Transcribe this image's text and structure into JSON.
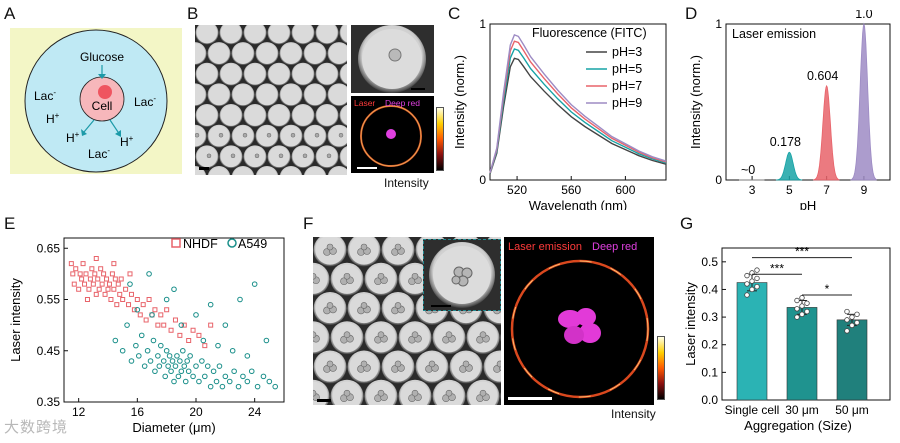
{
  "panel_labels": {
    "a": "A",
    "b": "B",
    "c": "C",
    "d": "D",
    "e": "E",
    "f": "F",
    "g": "G"
  },
  "panelA": {
    "glucose": "Glucose",
    "cell": "Cell",
    "lac": "Lac",
    "minus": "-",
    "hplus": "H",
    "plus": "+",
    "colors": {
      "bg": "#f3f6c6",
      "drop": "#bfe9f4",
      "cell": "#f7b7bb",
      "nucleus": "#ef5560",
      "arrow": "#1c9aa8"
    }
  },
  "panelB": {
    "laser": "Laser",
    "deep_red": "Deep red",
    "intensity": "Intensity"
  },
  "panelF": {
    "laser": "Laser emission",
    "deep_red": "Deep red",
    "intensity": "Intensity"
  },
  "chart_data": [
    {
      "id": "C",
      "type": "line",
      "legend_title": "Fluorescence (FITC)",
      "xlabel": "Wavelength (nm)",
      "ylabel": "Intensity (norm.)",
      "xlim": [
        500,
        630
      ],
      "ylim": [
        0,
        1
      ],
      "xticks": [
        520,
        560,
        600
      ],
      "yticks": [
        0,
        1
      ],
      "series": [
        {
          "name": "pH=3",
          "color": "#444444",
          "peak": 0.78
        },
        {
          "name": "pH=5",
          "color": "#17a3a6",
          "peak": 0.84
        },
        {
          "name": "pH=7",
          "color": "#e8636a",
          "peak": 0.89
        },
        {
          "name": "pH=9",
          "color": "#9d8bc4",
          "peak": 0.93
        }
      ],
      "shape": {
        "x": [
          500,
          505,
          510,
          515,
          518,
          521,
          525,
          530,
          540,
          550,
          560,
          570,
          580,
          590,
          600,
          610,
          620,
          630
        ],
        "y": [
          0.05,
          0.22,
          0.6,
          0.93,
          1.0,
          0.99,
          0.93,
          0.85,
          0.73,
          0.62,
          0.52,
          0.44,
          0.37,
          0.3,
          0.25,
          0.2,
          0.16,
          0.13
        ]
      }
    },
    {
      "id": "D",
      "type": "area",
      "legend_title": "Laser emission",
      "xlabel": "pH",
      "ylabel": "Intensity (norm.)",
      "xlim": [
        1.6,
        10.4
      ],
      "ylim": [
        0,
        1
      ],
      "xticks": [
        3,
        5,
        7,
        9
      ],
      "yticks": [
        0,
        1
      ],
      "series": [
        {
          "name": "pH=3",
          "x": 3,
          "value": 0,
          "label": "~0",
          "color": "#9a9a9a"
        },
        {
          "name": "pH=5",
          "x": 5,
          "value": 0.178,
          "label": "0.178",
          "color": "#17a3a6"
        },
        {
          "name": "pH=7",
          "x": 7,
          "value": 0.604,
          "label": "0.604",
          "color": "#e8636a"
        },
        {
          "name": "pH=9",
          "x": 9,
          "value": 1.0,
          "label": "1.0",
          "color": "#9d8bc4"
        }
      ]
    },
    {
      "id": "E",
      "type": "scatter",
      "xlabel": "Diameter (μm)",
      "ylabel": "Laser intensity",
      "xlim": [
        11,
        26
      ],
      "ylim": [
        0.35,
        0.67
      ],
      "xticks": [
        12,
        16,
        20,
        24
      ],
      "yticks": [
        0.35,
        0.45,
        0.55,
        0.65
      ],
      "series": [
        {
          "name": "NHDF",
          "marker": "square",
          "color": "#e8636a",
          "points": [
            [
              11.5,
              0.62
            ],
            [
              11.6,
              0.6
            ],
            [
              11.7,
              0.58
            ],
            [
              11.8,
              0.61
            ],
            [
              12.0,
              0.57
            ],
            [
              12.1,
              0.6
            ],
            [
              12.2,
              0.59
            ],
            [
              12.3,
              0.62
            ],
            [
              12.4,
              0.58
            ],
            [
              12.5,
              0.6
            ],
            [
              12.6,
              0.55
            ],
            [
              12.7,
              0.57
            ],
            [
              12.8,
              0.59
            ],
            [
              12.9,
              0.61
            ],
            [
              13.0,
              0.58
            ],
            [
              13.1,
              0.6
            ],
            [
              13.2,
              0.56
            ],
            [
              13.3,
              0.59
            ],
            [
              13.4,
              0.57
            ],
            [
              13.5,
              0.61
            ],
            [
              13.6,
              0.58
            ],
            [
              13.7,
              0.6
            ],
            [
              13.8,
              0.56
            ],
            [
              13.9,
              0.59
            ],
            [
              14.0,
              0.57
            ],
            [
              14.1,
              0.58
            ],
            [
              14.2,
              0.55
            ],
            [
              14.3,
              0.6
            ],
            [
              14.4,
              0.57
            ],
            [
              14.5,
              0.59
            ],
            [
              14.6,
              0.54
            ],
            [
              14.7,
              0.58
            ],
            [
              14.8,
              0.56
            ],
            [
              14.9,
              0.59
            ],
            [
              15.0,
              0.55
            ],
            [
              15.2,
              0.57
            ],
            [
              15.4,
              0.54
            ],
            [
              15.6,
              0.56
            ],
            [
              15.8,
              0.53
            ],
            [
              16.0,
              0.55
            ],
            [
              16.2,
              0.52
            ],
            [
              16.4,
              0.54
            ],
            [
              16.6,
              0.51
            ],
            [
              16.8,
              0.55
            ],
            [
              17.0,
              0.52
            ],
            [
              17.2,
              0.53
            ],
            [
              17.4,
              0.5
            ],
            [
              17.6,
              0.52
            ],
            [
              17.8,
              0.5
            ],
            [
              18.0,
              0.53
            ],
            [
              18.3,
              0.49
            ],
            [
              18.6,
              0.51
            ],
            [
              18.9,
              0.48
            ],
            [
              19.2,
              0.5
            ],
            [
              19.5,
              0.47
            ],
            [
              19.8,
              0.49
            ],
            [
              20.2,
              0.48
            ],
            [
              20.6,
              0.46
            ],
            [
              21.0,
              0.5
            ],
            [
              13.2,
              0.63
            ],
            [
              14.4,
              0.62
            ],
            [
              15.5,
              0.6
            ]
          ]
        },
        {
          "name": "A549",
          "marker": "circle",
          "color": "#1a8f8a",
          "points": [
            [
              14.5,
              0.47
            ],
            [
              15.0,
              0.45
            ],
            [
              15.3,
              0.5
            ],
            [
              15.6,
              0.43
            ],
            [
              15.9,
              0.46
            ],
            [
              16.1,
              0.44
            ],
            [
              16.3,
              0.48
            ],
            [
              16.5,
              0.42
            ],
            [
              16.7,
              0.45
            ],
            [
              16.9,
              0.43
            ],
            [
              17.1,
              0.47
            ],
            [
              17.2,
              0.41
            ],
            [
              17.4,
              0.44
            ],
            [
              17.5,
              0.42
            ],
            [
              17.6,
              0.46
            ],
            [
              17.8,
              0.43
            ],
            [
              17.9,
              0.4
            ],
            [
              18.0,
              0.45
            ],
            [
              18.1,
              0.42
            ],
            [
              18.2,
              0.44
            ],
            [
              18.3,
              0.41
            ],
            [
              18.4,
              0.43
            ],
            [
              18.5,
              0.39
            ],
            [
              18.6,
              0.42
            ],
            [
              18.7,
              0.44
            ],
            [
              18.8,
              0.4
            ],
            [
              18.9,
              0.43
            ],
            [
              19.0,
              0.41
            ],
            [
              19.1,
              0.45
            ],
            [
              19.2,
              0.42
            ],
            [
              19.3,
              0.39
            ],
            [
              19.4,
              0.43
            ],
            [
              19.5,
              0.41
            ],
            [
              19.6,
              0.44
            ],
            [
              19.8,
              0.4
            ],
            [
              20.0,
              0.42
            ],
            [
              20.2,
              0.39
            ],
            [
              20.4,
              0.43
            ],
            [
              20.6,
              0.4
            ],
            [
              20.8,
              0.42
            ],
            [
              21.0,
              0.38
            ],
            [
              21.2,
              0.41
            ],
            [
              21.4,
              0.39
            ],
            [
              21.6,
              0.42
            ],
            [
              21.8,
              0.38
            ],
            [
              22.0,
              0.4
            ],
            [
              22.3,
              0.39
            ],
            [
              22.6,
              0.41
            ],
            [
              22.9,
              0.38
            ],
            [
              23.2,
              0.4
            ],
            [
              23.5,
              0.39
            ],
            [
              23.8,
              0.41
            ],
            [
              24.2,
              0.38
            ],
            [
              24.6,
              0.4
            ],
            [
              25.0,
              0.39
            ],
            [
              25.4,
              0.38
            ],
            [
              16.0,
              0.53
            ],
            [
              17.0,
              0.52
            ],
            [
              18.0,
              0.55
            ],
            [
              19.0,
              0.5
            ],
            [
              20.0,
              0.52
            ],
            [
              21.0,
              0.54
            ],
            [
              22.0,
              0.5
            ],
            [
              23.0,
              0.55
            ],
            [
              24.0,
              0.58
            ],
            [
              20.5,
              0.47
            ],
            [
              21.5,
              0.46
            ],
            [
              22.5,
              0.45
            ],
            [
              23.5,
              0.44
            ],
            [
              16.8,
              0.6
            ],
            [
              18.5,
              0.57
            ],
            [
              15.5,
              0.58
            ],
            [
              24.8,
              0.47
            ]
          ]
        }
      ]
    },
    {
      "id": "G",
      "type": "bar",
      "ylabel": "Laser intensity",
      "xlabel": "Aggregation (Size)",
      "categories": [
        "Single cell",
        "30 μm",
        "50 μm"
      ],
      "values": [
        0.425,
        0.335,
        0.29
      ],
      "errors": [
        0.03,
        0.025,
        0.02
      ],
      "colors": [
        "#2bb3b4",
        "#1f938f",
        "#20807c"
      ],
      "ylim": [
        0,
        0.55
      ],
      "yticks": [
        0.0,
        0.1,
        0.2,
        0.3,
        0.4,
        0.5
      ],
      "points": [
        [
          0.38,
          0.4,
          0.41,
          0.42,
          0.43,
          0.44,
          0.45,
          0.46,
          0.47
        ],
        [
          0.3,
          0.31,
          0.32,
          0.33,
          0.34,
          0.35,
          0.36,
          0.37
        ],
        [
          0.25,
          0.27,
          0.28,
          0.29,
          0.3,
          0.31,
          0.32
        ]
      ],
      "significance": [
        {
          "from": 0,
          "to": 2,
          "label": "***"
        },
        {
          "from": 0,
          "to": 1,
          "label": "***"
        },
        {
          "from": 1,
          "to": 2,
          "label": "*"
        }
      ]
    }
  ],
  "watermark": "大数跨境"
}
